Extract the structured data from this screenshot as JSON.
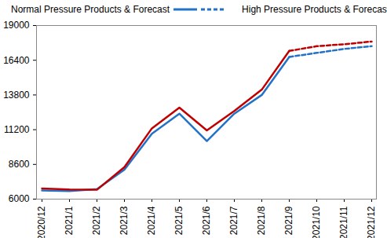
{
  "chart_data": {
    "type": "line",
    "categories": [
      "2020/12",
      "2021/1",
      "2021/2",
      "2021/3",
      "2021/4",
      "2021/5",
      "2021/6",
      "2021/7",
      "2021/8",
      "2021/9",
      "2021/10",
      "2021/11",
      "2021/12"
    ],
    "series": [
      {
        "name": "Normal Pressure Products & Forecast",
        "color": "#2272c8",
        "line_style": "solid",
        "values": [
          6650,
          6600,
          6750,
          8200,
          10900,
          12400,
          10350,
          12400,
          13800,
          16650,
          null,
          null,
          null
        ]
      },
      {
        "name": "Normal Pressure Products & Forecast",
        "color": "#2272c8",
        "line_style": "dashed",
        "values": [
          null,
          null,
          null,
          null,
          null,
          null,
          null,
          null,
          null,
          16650,
          16950,
          17250,
          17450
        ]
      },
      {
        "name": "High Pressure Products & Forecast",
        "color": "#c00000",
        "line_style": "solid",
        "values": [
          6800,
          6720,
          6700,
          8400,
          11300,
          12850,
          11150,
          12600,
          14200,
          17100,
          null,
          null,
          null
        ]
      },
      {
        "name": "High Pressure Products & Forecast",
        "color": "#c00000",
        "line_style": "dashed",
        "values": [
          null,
          null,
          null,
          null,
          null,
          null,
          null,
          null,
          null,
          17100,
          17450,
          17600,
          17800
        ]
      }
    ],
    "ylim": [
      6000,
      19000
    ],
    "yticks": [
      6000,
      8600,
      11200,
      13800,
      16400,
      19000
    ],
    "grid": false,
    "legend": "top"
  }
}
